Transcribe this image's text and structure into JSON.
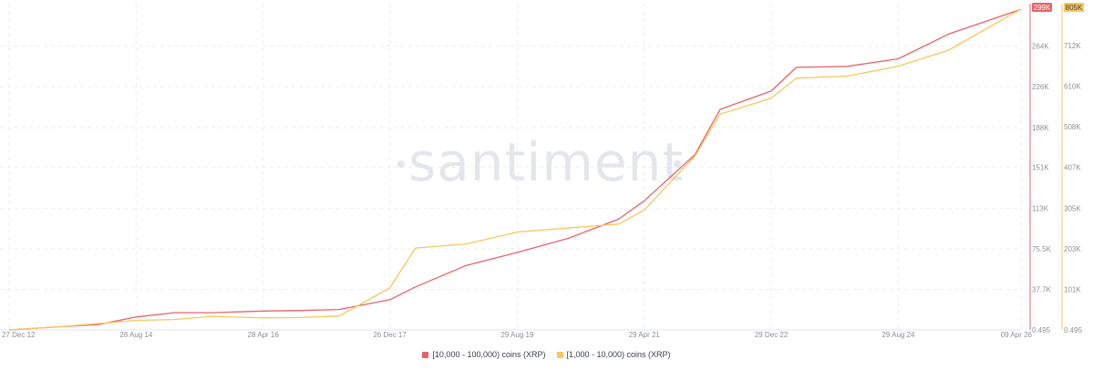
{
  "watermark": "santiment",
  "chart_data": {
    "type": "line",
    "x_ticks": [
      "27 Dec 12",
      "28 Aug 14",
      "28 Apr 16",
      "26 Dec 17",
      "29 Aug 19",
      "29 Apr 21",
      "29 Dec 22",
      "29 Aug 24",
      "09 Apr 26"
    ],
    "grid": true,
    "legend_position": "bottom-center",
    "y_axes": [
      {
        "side": "right-inner",
        "color": "#e8636b",
        "ticks": [
          "0.495",
          "37.7K",
          "75.5K",
          "113K",
          "151K",
          "188K",
          "226K",
          "264K"
        ],
        "tick_values": [
          0.495,
          37700,
          75500,
          113000,
          151000,
          188000,
          226000,
          264000
        ],
        "badge": "299K",
        "range": [
          0,
          299000
        ]
      },
      {
        "side": "right-outer",
        "color": "#f7c75b",
        "ticks": [
          "0.495",
          "101K",
          "203K",
          "305K",
          "407K",
          "508K",
          "610K",
          "712K"
        ],
        "tick_values": [
          0.495,
          101000,
          203000,
          305000,
          407000,
          508000,
          610000,
          712000
        ],
        "badge": "805K",
        "range": [
          0,
          805000
        ]
      }
    ],
    "series": [
      {
        "name": "[10,000 - 100,000) coins (XRP)",
        "color": "#e8636b",
        "axis": 0,
        "points": [
          [
            "27 Dec 12",
            0
          ],
          [
            "28 Aug 13",
            3000
          ],
          [
            "28 Feb 14",
            5000
          ],
          [
            "28 Aug 14",
            12000
          ],
          [
            "28 Feb 15",
            16000
          ],
          [
            "28 Aug 15",
            16000
          ],
          [
            "28 Apr 16",
            17500
          ],
          [
            "28 Oct 16",
            18000
          ],
          [
            "28 Apr 17",
            19000
          ],
          [
            "26 Dec 17",
            28000
          ],
          [
            "28 Apr 18",
            40000
          ],
          [
            "28 Dec 18",
            60000
          ],
          [
            "29 Aug 19",
            72000
          ],
          [
            "28 Apr 20",
            85000
          ],
          [
            "28 Dec 20",
            103000
          ],
          [
            "29 Apr 21",
            120000
          ],
          [
            "28 Dec 21",
            163000
          ],
          [
            "28 Apr 22",
            205000
          ],
          [
            "29 Dec 22",
            222000
          ],
          [
            "28 Apr 23",
            244000
          ],
          [
            "28 Dec 23",
            245000
          ],
          [
            "29 Aug 24",
            252000
          ],
          [
            "28 Apr 25",
            275000
          ],
          [
            "09 Apr 26",
            298000
          ]
        ]
      },
      {
        "name": "[1,000 - 10,000) coins (XRP)",
        "color": "#f7c75b",
        "axis": 1,
        "points": [
          [
            "27 Dec 12",
            0
          ],
          [
            "28 Aug 13",
            8000
          ],
          [
            "28 Feb 14",
            16000
          ],
          [
            "28 Aug 14",
            24000
          ],
          [
            "28 Feb 15",
            26000
          ],
          [
            "28 Aug 15",
            34000
          ],
          [
            "28 Apr 16",
            30000
          ],
          [
            "28 Oct 16",
            31000
          ],
          [
            "28 Apr 17",
            35000
          ],
          [
            "26 Dec 17",
            105000
          ],
          [
            "28 Apr 18",
            205000
          ],
          [
            "28 Dec 18",
            215000
          ],
          [
            "29 Aug 19",
            245000
          ],
          [
            "28 Apr 20",
            255000
          ],
          [
            "28 Dec 20",
            265000
          ],
          [
            "29 Apr 21",
            300000
          ],
          [
            "28 Dec 21",
            435000
          ],
          [
            "28 Apr 22",
            540000
          ],
          [
            "29 Dec 22",
            580000
          ],
          [
            "28 Apr 23",
            630000
          ],
          [
            "28 Dec 23",
            635000
          ],
          [
            "29 Aug 24",
            660000
          ],
          [
            "28 Apr 25",
            700000
          ],
          [
            "09 Apr 26",
            803000
          ]
        ]
      }
    ]
  }
}
